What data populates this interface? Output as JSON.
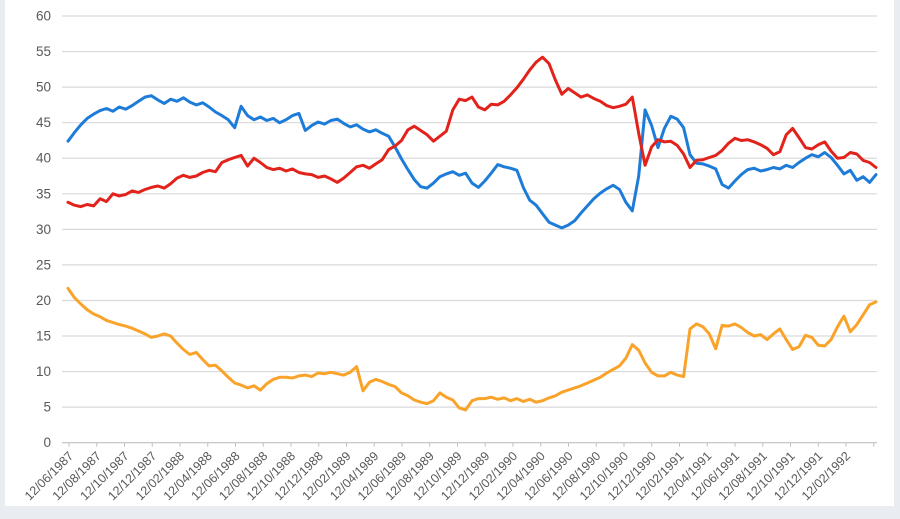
{
  "page": {
    "background": "#e9edf1",
    "panel_background": "#ffffff"
  },
  "colors": {
    "gridline": "#d9d9d9",
    "axis_line": "#bfbfbf",
    "tick_text": "#595959",
    "series_blue": "#1e7cd9",
    "series_red": "#e2231c",
    "series_orange": "#faa32b"
  },
  "chart_data": {
    "type": "line",
    "title": "",
    "legend_position": "none",
    "grid": true,
    "x_axis": {
      "label": "",
      "tick_label_rotation_deg": 45,
      "tick_interval": "2 months",
      "tick_labels": [
        "12/06/1987",
        "12/08/1987",
        "12/10/1987",
        "12/12/1987",
        "12/02/1988",
        "12/04/1988",
        "12/06/1988",
        "12/08/1988",
        "12/10/1988",
        "12/12/1988",
        "12/02/1989",
        "12/04/1989",
        "12/06/1989",
        "12/08/1989",
        "12/10/1989",
        "12/12/1989",
        "12/02/1990",
        "12/04/1990",
        "12/06/1990",
        "12/08/1990",
        "12/10/1990",
        "12/12/1990",
        "12/02/1991",
        "12/04/1991",
        "12/06/1991",
        "12/08/1991",
        "12/10/1991",
        "12/12/1991",
        "12/02/1992"
      ]
    },
    "y_axis": {
      "label": "",
      "min": 0,
      "max": 60,
      "step": 5,
      "tick_labels": [
        "0",
        "5",
        "10",
        "15",
        "20",
        "25",
        "30",
        "35",
        "40",
        "45",
        "50",
        "55",
        "60"
      ]
    },
    "sampling_note": "Values estimated from pixels; each series sampled at 127 uniform steps (~bi-weekly) spanning the x-axis from 12/06/1987 to just beyond 12/02/1992.",
    "series": [
      {
        "name": "blue-series",
        "color": "#1e7cd9",
        "values": [
          42.4,
          43.6,
          44.7,
          45.6,
          46.2,
          46.7,
          47.0,
          46.6,
          47.2,
          46.9,
          47.4,
          48.0,
          48.6,
          48.8,
          48.2,
          47.7,
          48.3,
          48.0,
          48.5,
          47.9,
          47.5,
          47.8,
          47.2,
          46.5,
          46.0,
          45.4,
          44.3,
          47.3,
          46.0,
          45.4,
          45.8,
          45.3,
          45.6,
          45.0,
          45.4,
          46.0,
          46.3,
          43.9,
          44.6,
          45.1,
          44.8,
          45.3,
          45.5,
          44.9,
          44.4,
          44.7,
          44.1,
          43.7,
          44.0,
          43.5,
          43.1,
          41.6,
          39.9,
          38.4,
          37.0,
          36.0,
          35.8,
          36.5,
          37.4,
          37.8,
          38.1,
          37.6,
          37.9,
          36.5,
          35.9,
          36.8,
          37.9,
          39.1,
          38.8,
          38.6,
          38.3,
          35.9,
          34.1,
          33.4,
          32.2,
          31.0,
          30.6,
          30.2,
          30.6,
          31.2,
          32.3,
          33.3,
          34.3,
          35.1,
          35.7,
          36.2,
          35.6,
          33.8,
          32.6,
          37.5,
          46.8,
          44.6,
          41.5,
          44.2,
          45.9,
          45.5,
          44.3,
          40.5,
          39.3,
          39.2,
          38.9,
          38.5,
          36.3,
          35.8,
          36.8,
          37.7,
          38.4,
          38.6,
          38.2,
          38.4,
          38.7,
          38.5,
          39.0,
          38.7,
          39.4,
          40.0,
          40.5,
          40.2,
          40.8,
          40.1,
          39.0,
          37.8,
          38.3,
          36.9,
          37.4,
          36.6,
          37.7
        ]
      },
      {
        "name": "red-series",
        "color": "#e2231c",
        "values": [
          33.8,
          33.4,
          33.2,
          33.5,
          33.3,
          34.3,
          33.9,
          35.0,
          34.7,
          34.9,
          35.4,
          35.2,
          35.6,
          35.9,
          36.1,
          35.8,
          36.4,
          37.2,
          37.6,
          37.3,
          37.5,
          38.0,
          38.3,
          38.1,
          39.4,
          39.8,
          40.1,
          40.4,
          38.9,
          40.0,
          39.4,
          38.7,
          38.4,
          38.6,
          38.2,
          38.5,
          38.0,
          37.8,
          37.7,
          37.3,
          37.5,
          37.1,
          36.6,
          37.2,
          38.0,
          38.8,
          39.0,
          38.6,
          39.2,
          39.8,
          41.2,
          41.7,
          42.5,
          44.0,
          44.5,
          43.9,
          43.3,
          42.4,
          43.1,
          43.8,
          46.8,
          48.3,
          48.1,
          48.6,
          47.2,
          46.8,
          47.6,
          47.5,
          48.0,
          48.9,
          49.9,
          51.1,
          52.4,
          53.5,
          54.2,
          53.3,
          51.0,
          49.0,
          49.8,
          49.2,
          48.6,
          48.9,
          48.4,
          48.0,
          47.4,
          47.1,
          47.3,
          47.6,
          48.6,
          43.5,
          39.0,
          41.6,
          42.6,
          42.3,
          42.4,
          41.8,
          40.6,
          38.7,
          39.7,
          39.8,
          40.1,
          40.4,
          41.1,
          42.1,
          42.8,
          42.5,
          42.6,
          42.3,
          41.9,
          41.4,
          40.5,
          40.9,
          43.3,
          44.2,
          42.9,
          41.5,
          41.3,
          41.9,
          42.3,
          41.0,
          40.0,
          40.1,
          40.8,
          40.6,
          39.7,
          39.4,
          38.7
        ]
      },
      {
        "name": "orange-series",
        "color": "#faa32b",
        "values": [
          21.7,
          20.4,
          19.5,
          18.7,
          18.1,
          17.7,
          17.2,
          16.9,
          16.6,
          16.4,
          16.1,
          15.7,
          15.3,
          14.8,
          15.0,
          15.3,
          15.0,
          14.0,
          13.1,
          12.4,
          12.7,
          11.7,
          10.8,
          10.9,
          10.1,
          9.2,
          8.4,
          8.1,
          7.7,
          8.0,
          7.4,
          8.3,
          8.9,
          9.2,
          9.2,
          9.1,
          9.4,
          9.5,
          9.3,
          9.8,
          9.7,
          9.9,
          9.7,
          9.5,
          9.9,
          10.7,
          7.3,
          8.5,
          8.9,
          8.6,
          8.2,
          7.9,
          7.0,
          6.6,
          6.0,
          5.7,
          5.5,
          5.9,
          7.0,
          6.4,
          6.0,
          4.9,
          4.6,
          5.9,
          6.2,
          6.2,
          6.4,
          6.1,
          6.3,
          5.9,
          6.2,
          5.8,
          6.1,
          5.7,
          5.9,
          6.3,
          6.6,
          7.1,
          7.4,
          7.7,
          8.0,
          8.4,
          8.8,
          9.2,
          9.8,
          10.3,
          10.8,
          11.9,
          13.8,
          13.0,
          11.2,
          9.9,
          9.4,
          9.4,
          9.9,
          9.5,
          9.3,
          16.0,
          16.7,
          16.3,
          15.3,
          13.2,
          16.5,
          16.4,
          16.7,
          16.2,
          15.5,
          15.0,
          15.2,
          14.5,
          15.3,
          16.0,
          14.5,
          13.1,
          13.5,
          15.1,
          14.8,
          13.7,
          13.6,
          14.5,
          16.3,
          17.8,
          15.6,
          16.6,
          18.0,
          19.4,
          19.8
        ]
      }
    ]
  }
}
